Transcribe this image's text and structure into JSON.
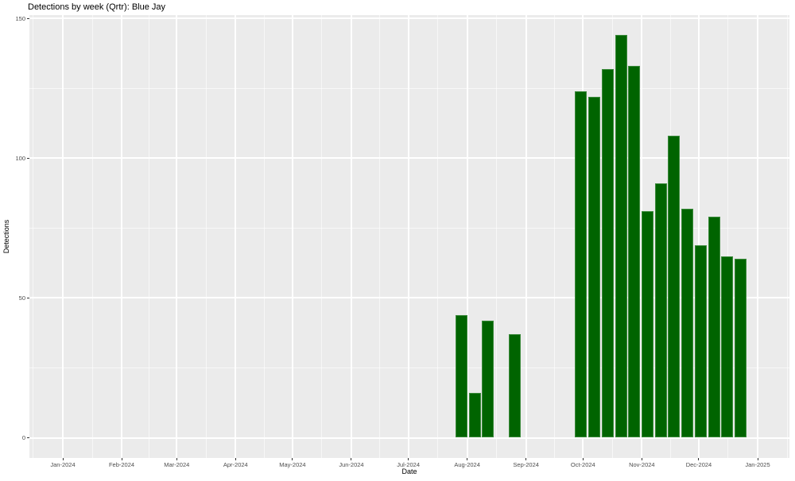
{
  "chart_data": {
    "type": "bar",
    "title": "Detections by week (Qrtr): Blue Jay",
    "xlabel": "Date",
    "ylabel": "Detections",
    "legend": "none",
    "grid": "on",
    "panel_bg": "#ebebeb",
    "grid_color": "#ffffff",
    "bar_fill": "#006400",
    "bar_border": "#3d8b3d",
    "tick_label_color": "#4d4d4d",
    "y_axis": {
      "ticks": [
        0,
        50,
        100,
        150
      ],
      "tick_labels": [
        "0",
        "50",
        "100",
        "150"
      ],
      "minor_ticks": [
        25,
        75,
        125
      ],
      "ylim_data": [
        0,
        144
      ]
    },
    "x_axis": {
      "ticks": [
        {
          "label": "Jan-2024",
          "date": "2024-01-01"
        },
        {
          "label": "Feb-2024",
          "date": "2024-02-01"
        },
        {
          "label": "Mar-2024",
          "date": "2024-03-01"
        },
        {
          "label": "Apr-2024",
          "date": "2024-04-01"
        },
        {
          "label": "May-2024",
          "date": "2024-05-01"
        },
        {
          "label": "Jun-2024",
          "date": "2024-06-01"
        },
        {
          "label": "Jul-2024",
          "date": "2024-07-01"
        },
        {
          "label": "Aug-2024",
          "date": "2024-08-01"
        },
        {
          "label": "Sep-2024",
          "date": "2024-09-01"
        },
        {
          "label": "Oct-2024",
          "date": "2024-10-01"
        },
        {
          "label": "Nov-2024",
          "date": "2024-11-01"
        },
        {
          "label": "Dec-2024",
          "date": "2024-12-01"
        },
        {
          "label": "Jan-2025",
          "date": "2025-01-01"
        }
      ]
    },
    "series": [
      {
        "name": "Blue Jay weekly detections",
        "points": [
          {
            "week_start": "2024-07-29",
            "value": 44
          },
          {
            "week_start": "2024-08-05",
            "value": 16
          },
          {
            "week_start": "2024-08-12",
            "value": 42
          },
          {
            "week_start": "2024-08-26",
            "value": 37
          },
          {
            "week_start": "2024-09-30",
            "value": 124
          },
          {
            "week_start": "2024-10-07",
            "value": 122
          },
          {
            "week_start": "2024-10-14",
            "value": 132
          },
          {
            "week_start": "2024-10-21",
            "value": 144
          },
          {
            "week_start": "2024-10-28",
            "value": 133
          },
          {
            "week_start": "2024-11-04",
            "value": 81
          },
          {
            "week_start": "2024-11-11",
            "value": 91
          },
          {
            "week_start": "2024-11-18",
            "value": 108
          },
          {
            "week_start": "2024-11-25",
            "value": 82
          },
          {
            "week_start": "2024-12-02",
            "value": 69
          },
          {
            "week_start": "2024-12-09",
            "value": 79
          },
          {
            "week_start": "2024-12-16",
            "value": 65
          },
          {
            "week_start": "2024-12-23",
            "value": 64
          }
        ]
      }
    ]
  }
}
